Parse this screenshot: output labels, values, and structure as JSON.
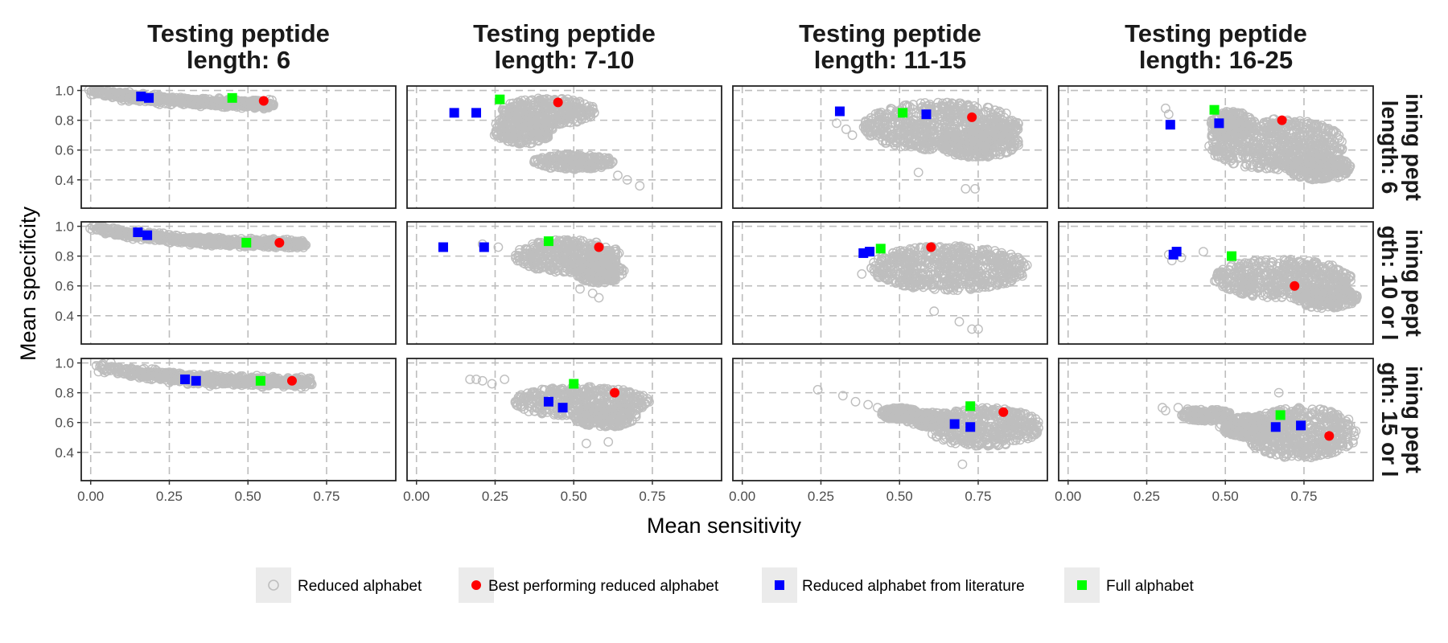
{
  "chart_data": {
    "type": "scatter",
    "facets": {
      "columns": [
        "Testing peptide\nlength: 6",
        "Testing peptide\nlength: 7-10",
        "Testing peptide\nlength: 11-15",
        "Testing peptide\nlength: 16-25"
      ],
      "rows": [
        "ining pept\nlength: 6",
        "ining pept\ngth: 10 or l",
        "ining pept\ngth: 15 or l"
      ]
    },
    "xlabel": "Mean sensitivity",
    "ylabel": "Mean specificity",
    "xlim": [
      -0.03,
      0.97
    ],
    "ylim": [
      0.21,
      1.03
    ],
    "xticks": [
      "0.00",
      "0.25",
      "0.50",
      "0.75"
    ],
    "xtick_values": [
      0,
      0.25,
      0.5,
      0.75
    ],
    "yticks": [
      "0.4",
      "0.6",
      "0.8",
      "1.0"
    ],
    "ytick_values": [
      0.4,
      0.6,
      0.8,
      1.0
    ],
    "grid": "dashed",
    "legend": {
      "position": "bottom",
      "items": [
        {
          "label": "Reduced alphabet",
          "shape": "open-circle",
          "color": "#bebebe"
        },
        {
          "label": "Best performing reduced alphabet",
          "shape": "filled-circle",
          "color": "#ff0000"
        },
        {
          "label": "Reduced alphabet from literature",
          "shape": "square",
          "color": "#0000ff"
        },
        {
          "label": "Full alphabet",
          "shape": "square",
          "color": "#00ff00"
        }
      ]
    },
    "panels": [
      {
        "row": 0,
        "col": 0,
        "reduced_cloud": {
          "kind": "band",
          "polyline": [
            [
              0.0,
              0.99
            ],
            [
              0.1,
              0.965
            ],
            [
              0.25,
              0.935
            ],
            [
              0.4,
              0.915
            ],
            [
              0.5,
              0.91
            ],
            [
              0.58,
              0.905
            ]
          ],
          "thickness": 0.035
        },
        "best": [
          0.55,
          0.93
        ],
        "literature": [
          [
            0.16,
            0.96
          ],
          [
            0.185,
            0.95
          ]
        ],
        "full": [
          0.45,
          0.95
        ]
      },
      {
        "row": 0,
        "col": 1,
        "reduced_cloud": {
          "kind": "blob",
          "blobs": [
            {
              "c": [
                0.42,
                0.86
              ],
              "r": [
                0.15,
                0.09
              ]
            },
            {
              "c": [
                0.34,
                0.74
              ],
              "r": [
                0.1,
                0.1
              ]
            },
            {
              "c": [
                0.5,
                0.52
              ],
              "r": [
                0.13,
                0.05
              ]
            }
          ],
          "outliers": [
            [
              0.67,
              0.4
            ],
            [
              0.71,
              0.36
            ],
            [
              0.64,
              0.43
            ]
          ]
        },
        "best": [
          0.45,
          0.92
        ],
        "literature": [
          [
            0.12,
            0.85
          ],
          [
            0.19,
            0.85
          ]
        ],
        "full": [
          0.265,
          0.94
        ]
      },
      {
        "row": 0,
        "col": 2,
        "reduced_cloud": {
          "kind": "blob",
          "blobs": [
            {
              "c": [
                0.63,
                0.76
              ],
              "r": [
                0.25,
                0.16
              ]
            },
            {
              "c": [
                0.75,
                0.65
              ],
              "r": [
                0.13,
                0.1
              ]
            }
          ],
          "outliers": [
            [
              0.3,
              0.78
            ],
            [
              0.33,
              0.74
            ],
            [
              0.35,
              0.7
            ],
            [
              0.71,
              0.34
            ],
            [
              0.74,
              0.34
            ],
            [
              0.56,
              0.45
            ]
          ]
        },
        "best": [
          0.73,
          0.82
        ],
        "literature": [
          [
            0.31,
            0.86
          ],
          [
            0.585,
            0.84
          ]
        ],
        "full": [
          0.51,
          0.85
        ]
      },
      {
        "row": 0,
        "col": 3,
        "reduced_cloud": {
          "kind": "blob",
          "blobs": [
            {
              "c": [
                0.66,
                0.64
              ],
              "r": [
                0.22,
                0.17
              ]
            },
            {
              "c": [
                0.52,
                0.77
              ],
              "r": [
                0.07,
                0.09
              ]
            },
            {
              "c": [
                0.8,
                0.48
              ],
              "r": [
                0.1,
                0.08
              ]
            }
          ],
          "outliers": [
            [
              0.31,
              0.88
            ],
            [
              0.32,
              0.84
            ]
          ]
        },
        "best": [
          0.68,
          0.8
        ],
        "literature": [
          [
            0.325,
            0.77
          ],
          [
            0.48,
            0.78
          ]
        ],
        "full": [
          0.465,
          0.87
        ]
      },
      {
        "row": 1,
        "col": 0,
        "reduced_cloud": {
          "kind": "band",
          "polyline": [
            [
              0.0,
              0.99
            ],
            [
              0.15,
              0.94
            ],
            [
              0.3,
              0.91
            ],
            [
              0.45,
              0.89
            ],
            [
              0.6,
              0.885
            ],
            [
              0.68,
              0.88
            ]
          ],
          "thickness": 0.035
        },
        "best": [
          0.6,
          0.89
        ],
        "literature": [
          [
            0.15,
            0.96
          ],
          [
            0.18,
            0.94
          ]
        ],
        "full": [
          0.495,
          0.89
        ]
      },
      {
        "row": 1,
        "col": 1,
        "reduced_cloud": {
          "kind": "blob",
          "blobs": [
            {
              "c": [
                0.48,
                0.8
              ],
              "r": [
                0.17,
                0.11
              ]
            },
            {
              "c": [
                0.58,
                0.7
              ],
              "r": [
                0.08,
                0.08
              ]
            }
          ],
          "outliers": [
            [
              0.21,
              0.88
            ],
            [
              0.26,
              0.86
            ],
            [
              0.52,
              0.58
            ],
            [
              0.56,
              0.55
            ],
            [
              0.58,
              0.52
            ]
          ]
        },
        "best": [
          0.58,
          0.86
        ],
        "literature": [
          [
            0.085,
            0.86
          ],
          [
            0.215,
            0.86
          ]
        ],
        "full": [
          0.42,
          0.9
        ]
      },
      {
        "row": 1,
        "col": 2,
        "reduced_cloud": {
          "kind": "blob",
          "blobs": [
            {
              "c": [
                0.66,
                0.72
              ],
              "r": [
                0.25,
                0.15
              ]
            }
          ],
          "outliers": [
            [
              0.38,
              0.68
            ],
            [
              0.41,
              0.72
            ],
            [
              0.69,
              0.36
            ],
            [
              0.73,
              0.31
            ],
            [
              0.75,
              0.31
            ],
            [
              0.61,
              0.43
            ]
          ]
        },
        "best": [
          0.6,
          0.86
        ],
        "literature": [
          [
            0.385,
            0.82
          ],
          [
            0.405,
            0.83
          ]
        ],
        "full": [
          0.44,
          0.85
        ]
      },
      {
        "row": 1,
        "col": 3,
        "reduced_cloud": {
          "kind": "blob",
          "blobs": [
            {
              "c": [
                0.68,
                0.65
              ],
              "r": [
                0.22,
                0.13
              ]
            },
            {
              "c": [
                0.82,
                0.52
              ],
              "r": [
                0.1,
                0.07
              ]
            }
          ],
          "outliers": [
            [
              0.32,
              0.81
            ],
            [
              0.33,
              0.77
            ],
            [
              0.36,
              0.79
            ],
            [
              0.43,
              0.83
            ]
          ]
        },
        "best": [
          0.72,
          0.6
        ],
        "literature": [
          [
            0.335,
            0.81
          ],
          [
            0.345,
            0.83
          ]
        ],
        "full": [
          0.52,
          0.8
        ]
      },
      {
        "row": 2,
        "col": 0,
        "reduced_cloud": {
          "kind": "band",
          "polyline": [
            [
              0.02,
              0.98
            ],
            [
              0.15,
              0.93
            ],
            [
              0.3,
              0.9
            ],
            [
              0.45,
              0.88
            ],
            [
              0.58,
              0.875
            ],
            [
              0.7,
              0.87
            ]
          ],
          "thickness": 0.045
        },
        "best": [
          0.64,
          0.88
        ],
        "literature": [
          [
            0.3,
            0.89
          ],
          [
            0.335,
            0.88
          ]
        ],
        "full": [
          0.54,
          0.88
        ]
      },
      {
        "row": 2,
        "col": 1,
        "reduced_cloud": {
          "kind": "blob",
          "blobs": [
            {
              "c": [
                0.52,
                0.74
              ],
              "r": [
                0.22,
                0.1
              ]
            },
            {
              "c": [
                0.6,
                0.64
              ],
              "r": [
                0.1,
                0.07
              ]
            }
          ],
          "outliers": [
            [
              0.17,
              0.89
            ],
            [
              0.19,
              0.89
            ],
            [
              0.21,
              0.88
            ],
            [
              0.24,
              0.86
            ],
            [
              0.28,
              0.89
            ],
            [
              0.54,
              0.46
            ],
            [
              0.61,
              0.47
            ]
          ]
        },
        "best": [
          0.63,
          0.8
        ],
        "literature": [
          [
            0.42,
            0.74
          ],
          [
            0.465,
            0.7
          ]
        ],
        "full": [
          0.5,
          0.86
        ]
      },
      {
        "row": 2,
        "col": 2,
        "reduced_cloud": {
          "kind": "blob",
          "blobs": [
            {
              "c": [
                0.77,
                0.57
              ],
              "r": [
                0.18,
                0.13
              ]
            },
            {
              "c": [
                0.6,
                0.62
              ],
              "r": [
                0.08,
                0.05
              ]
            },
            {
              "c": [
                0.5,
                0.66
              ],
              "r": [
                0.06,
                0.04
              ]
            }
          ],
          "outliers": [
            [
              0.24,
              0.82
            ],
            [
              0.32,
              0.78
            ],
            [
              0.36,
              0.74
            ],
            [
              0.4,
              0.72
            ],
            [
              0.43,
              0.7
            ],
            [
              0.7,
              0.32
            ]
          ]
        },
        "best": [
          0.83,
          0.67
        ],
        "literature": [
          [
            0.675,
            0.59
          ],
          [
            0.725,
            0.57
          ]
        ],
        "full": [
          0.725,
          0.71
        ]
      },
      {
        "row": 2,
        "col": 3,
        "reduced_cloud": {
          "kind": "blob",
          "blobs": [
            {
              "c": [
                0.74,
                0.53
              ],
              "r": [
                0.18,
                0.17
              ]
            },
            {
              "c": [
                0.58,
                0.57
              ],
              "r": [
                0.1,
                0.07
              ]
            },
            {
              "c": [
                0.44,
                0.65
              ],
              "r": [
                0.08,
                0.04
              ]
            }
          ],
          "outliers": [
            [
              0.3,
              0.7
            ],
            [
              0.31,
              0.68
            ],
            [
              0.35,
              0.7
            ],
            [
              0.38,
              0.69
            ],
            [
              0.67,
              0.8
            ]
          ]
        },
        "best": [
          0.83,
          0.51
        ],
        "literature": [
          [
            0.66,
            0.57
          ],
          [
            0.74,
            0.58
          ]
        ],
        "full": [
          0.675,
          0.65
        ]
      }
    ]
  }
}
